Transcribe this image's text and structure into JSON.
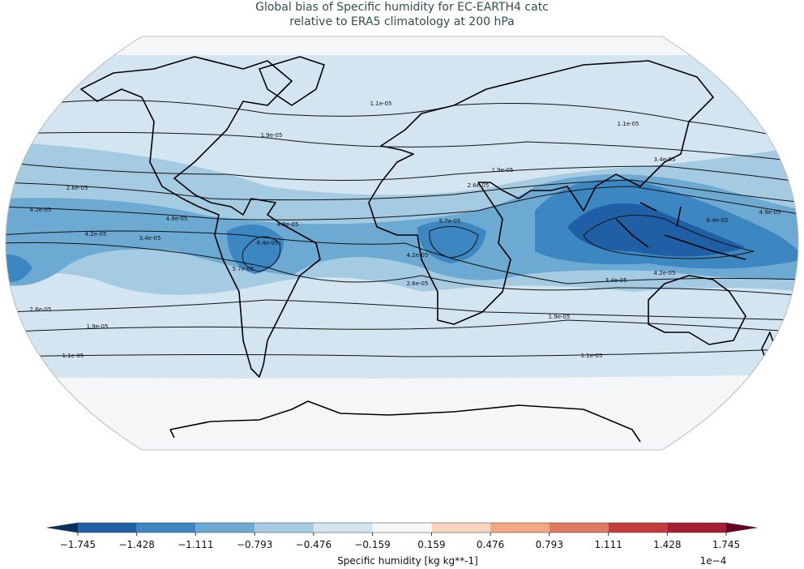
{
  "title": [
    "Global bias of Specific humidity for EC-EARTH4 catc",
    "relative to ERA5 climatology at 200 hPa"
  ],
  "colorbar": {
    "label": "Specific humidity [kg kg**-1]",
    "multiplier": "1e−4",
    "ticks": [
      {
        "value": -1.745,
        "label": "−1.745"
      },
      {
        "value": -1.428,
        "label": "−1.428"
      },
      {
        "value": -1.111,
        "label": "−1.111"
      },
      {
        "value": -0.793,
        "label": "−0.793"
      },
      {
        "value": -0.476,
        "label": "−0.476"
      },
      {
        "value": -0.159,
        "label": "−0.159"
      },
      0.159,
      0.476,
      0.793,
      1.111,
      1.428,
      1.745
    ],
    "colors": [
      "#1f5fa6",
      "#3c86c1",
      "#6caad3",
      "#a5cbe3",
      "#d3e5f0",
      "#f7f7f7",
      "#fbd5c0",
      "#f4a582",
      "#df7a62",
      "#c43c3c",
      "#a51e34"
    ],
    "under_color": "#053061",
    "over_color": "#67001f"
  },
  "contour_labels": [
    "1.1e-05",
    "1.1e-05",
    "1.9e-05",
    "1.9e-05",
    "2.6e-05",
    "2.6e-05",
    "4.2e-05",
    "4.2e-05",
    "3.4e-05",
    "4.9e-05",
    "4.9e-05",
    "5.7e-05",
    "5.7e-05",
    "6.4e-05",
    "2.6e-05",
    "1.9e-05",
    "1.1e-05",
    "1.1e-05",
    "3.4e-05",
    "4.2e-05",
    "4.9e-05",
    "6.4e-05",
    "2.6e-05",
    "1.9e-05",
    "3.4e-05",
    "4.2e-05"
  ]
}
